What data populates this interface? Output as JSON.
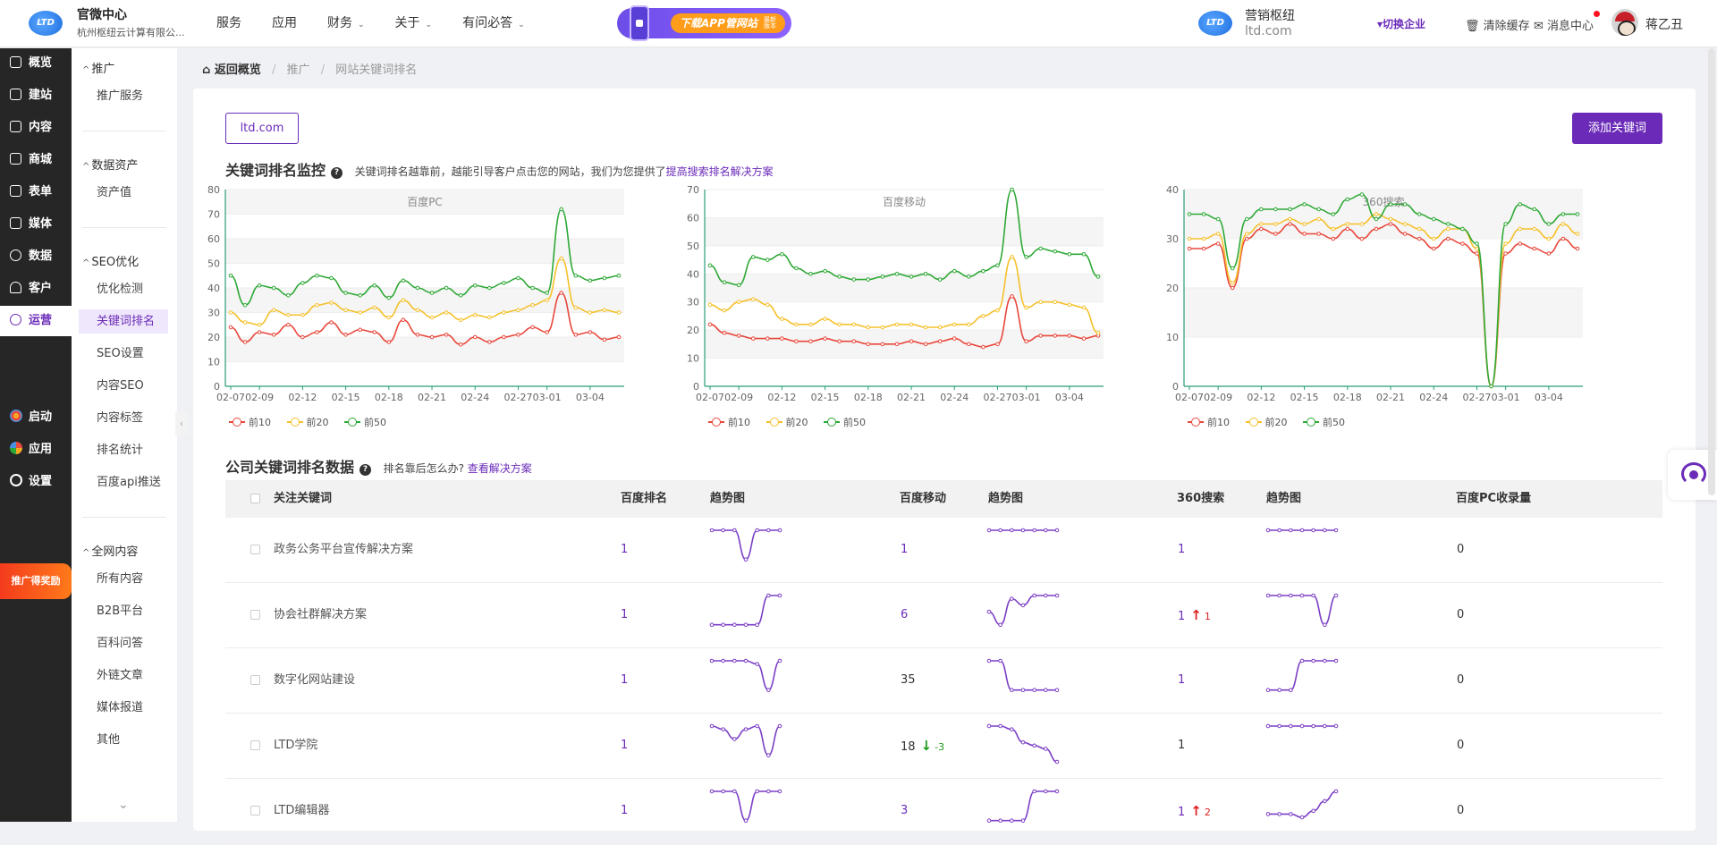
{
  "header": {
    "brand_title": "官微中心",
    "brand_subtitle": "杭州枢纽云计算有限公...",
    "logo_text": "LTD",
    "nav": [
      {
        "label": "服务",
        "dropdown": false
      },
      {
        "label": "应用",
        "dropdown": false
      },
      {
        "label": "财务",
        "dropdown": true
      },
      {
        "label": "关于",
        "dropdown": true
      },
      {
        "label": "有问必答",
        "dropdown": true
      }
    ],
    "promo_label": "下载APP管网站",
    "promo_tag": "最新版本",
    "org_title": "营销枢纽",
    "org_domain": "ltd.com",
    "switch_label": "切换企业",
    "clear_label": "清除缓存",
    "message_label": "消息中心",
    "user_name": "蒋乙丑"
  },
  "primary_sidebar": {
    "items": [
      {
        "label": "概览"
      },
      {
        "label": "建站"
      },
      {
        "label": "内容"
      },
      {
        "label": "商城"
      },
      {
        "label": "表单"
      },
      {
        "label": "媒体"
      },
      {
        "label": "数据"
      },
      {
        "label": "客户"
      },
      {
        "label": "运营",
        "active": true
      }
    ],
    "extra_items": [
      {
        "label": "启动",
        "color": "#f5a623"
      },
      {
        "label": "应用",
        "color": "#e94b3c"
      },
      {
        "label": "设置",
        "color": "#ffffff"
      }
    ],
    "promo_badge": "推广得奖励"
  },
  "secondary_sidebar": {
    "groups": [
      {
        "title": "推广",
        "items": [
          {
            "label": "推广服务"
          }
        ]
      },
      {
        "title": "数据资产",
        "items": [
          {
            "label": "资产值"
          }
        ]
      },
      {
        "title": "SEO优化",
        "items": [
          {
            "label": "优化检测"
          },
          {
            "label": "关键词排名",
            "active": true
          },
          {
            "label": "SEO设置"
          },
          {
            "label": "内容SEO"
          },
          {
            "label": "内容标签"
          },
          {
            "label": "排名统计"
          },
          {
            "label": "百度api推送"
          }
        ]
      },
      {
        "title": "全网内容",
        "items": [
          {
            "label": "所有内容"
          },
          {
            "label": "B2B平台"
          },
          {
            "label": "百科问答"
          },
          {
            "label": "外链文章"
          },
          {
            "label": "媒体报道"
          },
          {
            "label": "其他"
          }
        ]
      }
    ]
  },
  "breadcrumb": {
    "home": "返回概览",
    "level1": "推广",
    "level2": "网站关键词排名"
  },
  "main": {
    "domain_button": "ltd.com",
    "add_button": "添加关键词",
    "monitor_title": "关键词排名监控",
    "monitor_desc": "关键词排名越靠前，越能引导客户点击您的网站，我们为您提供了",
    "monitor_link": "提高搜索排名解决方案",
    "table_title": "公司关键词排名数据",
    "table_desc": "排名靠后怎么办?",
    "table_link": "查看解决方案",
    "table_headers": [
      "关注关键词",
      "百度排名",
      "趋势图",
      "百度移动",
      "趋势图",
      "360搜索",
      "趋势图",
      "百度PC收录量"
    ],
    "rows": [
      {
        "keyword": "政务公务平台宣传解决方案",
        "baidu": "1",
        "baidu_change": "",
        "mobile": "1",
        "mobile_change": "",
        "s360": "1",
        "s360_change": "",
        "indexed": "0",
        "trend_baidu": [
          1,
          1,
          1,
          10,
          1,
          1,
          1
        ],
        "trend_mobile": [
          1,
          1,
          1,
          1,
          1,
          1,
          1
        ],
        "trend_360": [
          1,
          1,
          1,
          1,
          1,
          1,
          1
        ]
      },
      {
        "keyword": "协会社群解决方案",
        "baidu": "1",
        "baidu_change": "",
        "mobile": "6",
        "mobile_change": "",
        "s360": "1",
        "s360_change": "1",
        "s360_dir": "up",
        "indexed": "0",
        "trend_baidu": [
          10,
          10,
          10,
          10,
          10,
          1,
          1
        ],
        "trend_mobile": [
          6,
          10,
          2,
          4,
          1,
          1,
          1
        ],
        "trend_360": [
          1,
          1,
          1,
          1,
          1,
          10,
          1
        ]
      },
      {
        "keyword": "数字化网站建设",
        "baidu": "1",
        "baidu_change": "",
        "mobile": "35",
        "mobile_change": "",
        "mobile_plain": true,
        "s360": "1",
        "s360_change": "",
        "indexed": "0",
        "trend_baidu": [
          1,
          1,
          1,
          1,
          2,
          10,
          1
        ],
        "trend_mobile": [
          1,
          1,
          10,
          10,
          10,
          10,
          10
        ],
        "trend_360": [
          10,
          10,
          10,
          1,
          1,
          1,
          1
        ]
      },
      {
        "keyword": "LTD学院",
        "baidu": "1",
        "baidu_change": "",
        "mobile": "18",
        "mobile_change": "-3",
        "mobile_dir": "down",
        "mobile_plain": true,
        "s360": "1",
        "s360_change": "",
        "s360_plain": true,
        "indexed": "0",
        "trend_baidu": [
          1,
          2,
          5,
          2,
          1,
          10,
          1
        ],
        "trend_mobile": [
          1,
          1,
          2,
          6,
          7,
          8,
          12
        ],
        "trend_360": [
          1,
          1,
          1,
          1,
          1,
          1,
          1
        ]
      },
      {
        "keyword": "LTD编辑器",
        "baidu": "1",
        "baidu_change": "",
        "mobile": "3",
        "mobile_change": "",
        "s360": "1",
        "s360_change": "2",
        "s360_dir": "up",
        "indexed": "0",
        "trend_baidu": [
          1,
          1,
          1,
          10,
          1,
          1,
          1
        ],
        "trend_mobile": [
          10,
          10,
          10,
          10,
          1,
          1,
          1
        ],
        "trend_360": [
          8,
          8,
          8,
          9,
          7,
          4,
          1
        ]
      }
    ]
  },
  "chart_data": [
    {
      "type": "line",
      "title": "百度PC",
      "x": [
        "02-07",
        "02-08",
        "02-09",
        "02-10",
        "02-11",
        "02-12",
        "02-13",
        "02-14",
        "02-15",
        "02-16",
        "02-17",
        "02-18",
        "02-19",
        "02-20",
        "02-21",
        "02-22",
        "02-23",
        "02-24",
        "02-25",
        "02-26",
        "02-27",
        "02-28",
        "03-01",
        "03-02",
        "03-03",
        "03-04",
        "03-05",
        "03-06"
      ],
      "x_ticks": [
        "02-07",
        "02-09",
        "02-12",
        "02-15",
        "02-18",
        "02-21",
        "02-24",
        "02-27",
        "03-01",
        "03-04"
      ],
      "ylim": [
        0,
        80
      ],
      "y_ticks": [
        0,
        10,
        20,
        30,
        40,
        50,
        60,
        70,
        80
      ],
      "series": [
        {
          "name": "前10",
          "color": "#e8473b",
          "values": [
            24,
            18,
            22,
            21,
            25,
            20,
            22,
            26,
            21,
            23,
            22,
            18,
            27,
            21,
            20,
            21,
            17,
            20,
            18,
            20,
            21,
            24,
            22,
            38,
            21,
            22,
            19,
            20
          ]
        },
        {
          "name": "前20",
          "color": "#f5c02a",
          "values": [
            30,
            26,
            25,
            31,
            29,
            29,
            33,
            34,
            31,
            30,
            32,
            28,
            35,
            31,
            28,
            30,
            27,
            29,
            28,
            30,
            31,
            33,
            35,
            52,
            32,
            30,
            31,
            30
          ]
        },
        {
          "name": "前50",
          "color": "#2ea836",
          "values": [
            45,
            33,
            41,
            40,
            37,
            42,
            45,
            44,
            38,
            37,
            41,
            36,
            43,
            40,
            38,
            40,
            37,
            41,
            40,
            42,
            44,
            40,
            38,
            72,
            45,
            43,
            44,
            45
          ]
        }
      ]
    },
    {
      "type": "line",
      "title": "百度移动",
      "x": [
        "02-07",
        "02-08",
        "02-09",
        "02-10",
        "02-11",
        "02-12",
        "02-13",
        "02-14",
        "02-15",
        "02-16",
        "02-17",
        "02-18",
        "02-19",
        "02-20",
        "02-21",
        "02-22",
        "02-23",
        "02-24",
        "02-25",
        "02-26",
        "02-27",
        "02-28",
        "03-01",
        "03-02",
        "03-03",
        "03-04",
        "03-05",
        "03-06"
      ],
      "x_ticks": [
        "02-07",
        "02-09",
        "02-12",
        "02-15",
        "02-18",
        "02-21",
        "02-24",
        "02-27",
        "03-01",
        "03-04"
      ],
      "ylim": [
        0,
        70
      ],
      "y_ticks": [
        0,
        10,
        20,
        30,
        40,
        50,
        60,
        70
      ],
      "series": [
        {
          "name": "前10",
          "color": "#e8473b",
          "values": [
            22,
            19,
            18,
            17,
            17,
            17,
            16,
            16,
            17,
            16,
            16,
            15,
            15,
            15,
            16,
            15,
            16,
            17,
            15,
            14,
            15,
            32,
            16,
            18,
            18,
            18,
            17,
            18
          ]
        },
        {
          "name": "前20",
          "color": "#f5c02a",
          "values": [
            29,
            27,
            30,
            31,
            29,
            24,
            22,
            22,
            24,
            22,
            22,
            21,
            21,
            22,
            22,
            21,
            21,
            22,
            22,
            25,
            27,
            46,
            28,
            30,
            30,
            29,
            28,
            19
          ]
        },
        {
          "name": "前50",
          "color": "#2ea836",
          "values": [
            43,
            37,
            36,
            46,
            45,
            47,
            42,
            40,
            41,
            39,
            38,
            38,
            39,
            40,
            39,
            40,
            38,
            41,
            39,
            41,
            43,
            70,
            46,
            49,
            48,
            47,
            47,
            39
          ]
        }
      ]
    },
    {
      "type": "line",
      "title": "360搜索",
      "x": [
        "02-07",
        "02-08",
        "02-09",
        "02-10",
        "02-11",
        "02-12",
        "02-13",
        "02-14",
        "02-15",
        "02-16",
        "02-17",
        "02-18",
        "02-19",
        "02-20",
        "02-21",
        "02-22",
        "02-23",
        "02-24",
        "02-25",
        "02-26",
        "02-27",
        "02-28",
        "03-01",
        "03-02",
        "03-03",
        "03-04",
        "03-05",
        "03-06"
      ],
      "x_ticks": [
        "02-07",
        "02-09",
        "02-12",
        "02-15",
        "02-18",
        "02-21",
        "02-24",
        "02-27",
        "03-01",
        "03-04"
      ],
      "ylim": [
        0,
        40
      ],
      "y_ticks": [
        0,
        10,
        20,
        30,
        40
      ],
      "series": [
        {
          "name": "前10",
          "color": "#e8473b",
          "values": [
            28,
            28,
            29,
            20,
            30,
            32,
            31,
            33,
            31,
            31,
            30,
            32,
            30,
            32,
            33,
            31,
            30,
            28,
            30,
            29,
            27,
            0,
            27,
            29,
            28,
            27,
            30,
            28
          ]
        },
        {
          "name": "前20",
          "color": "#f5c02a",
          "values": [
            30,
            30,
            31,
            21,
            31,
            33,
            33,
            34,
            33,
            34,
            32,
            33,
            33,
            35,
            34,
            33,
            32,
            30,
            32,
            32,
            28,
            0,
            29,
            32,
            32,
            30,
            33,
            31
          ]
        },
        {
          "name": "前50",
          "color": "#2ea836",
          "values": [
            35,
            35,
            34,
            24,
            34,
            36,
            36,
            36,
            37,
            36,
            35,
            38,
            39,
            34,
            37,
            37,
            35,
            34,
            33,
            32,
            29,
            0,
            33,
            37,
            36,
            33,
            35,
            35
          ]
        }
      ]
    }
  ]
}
